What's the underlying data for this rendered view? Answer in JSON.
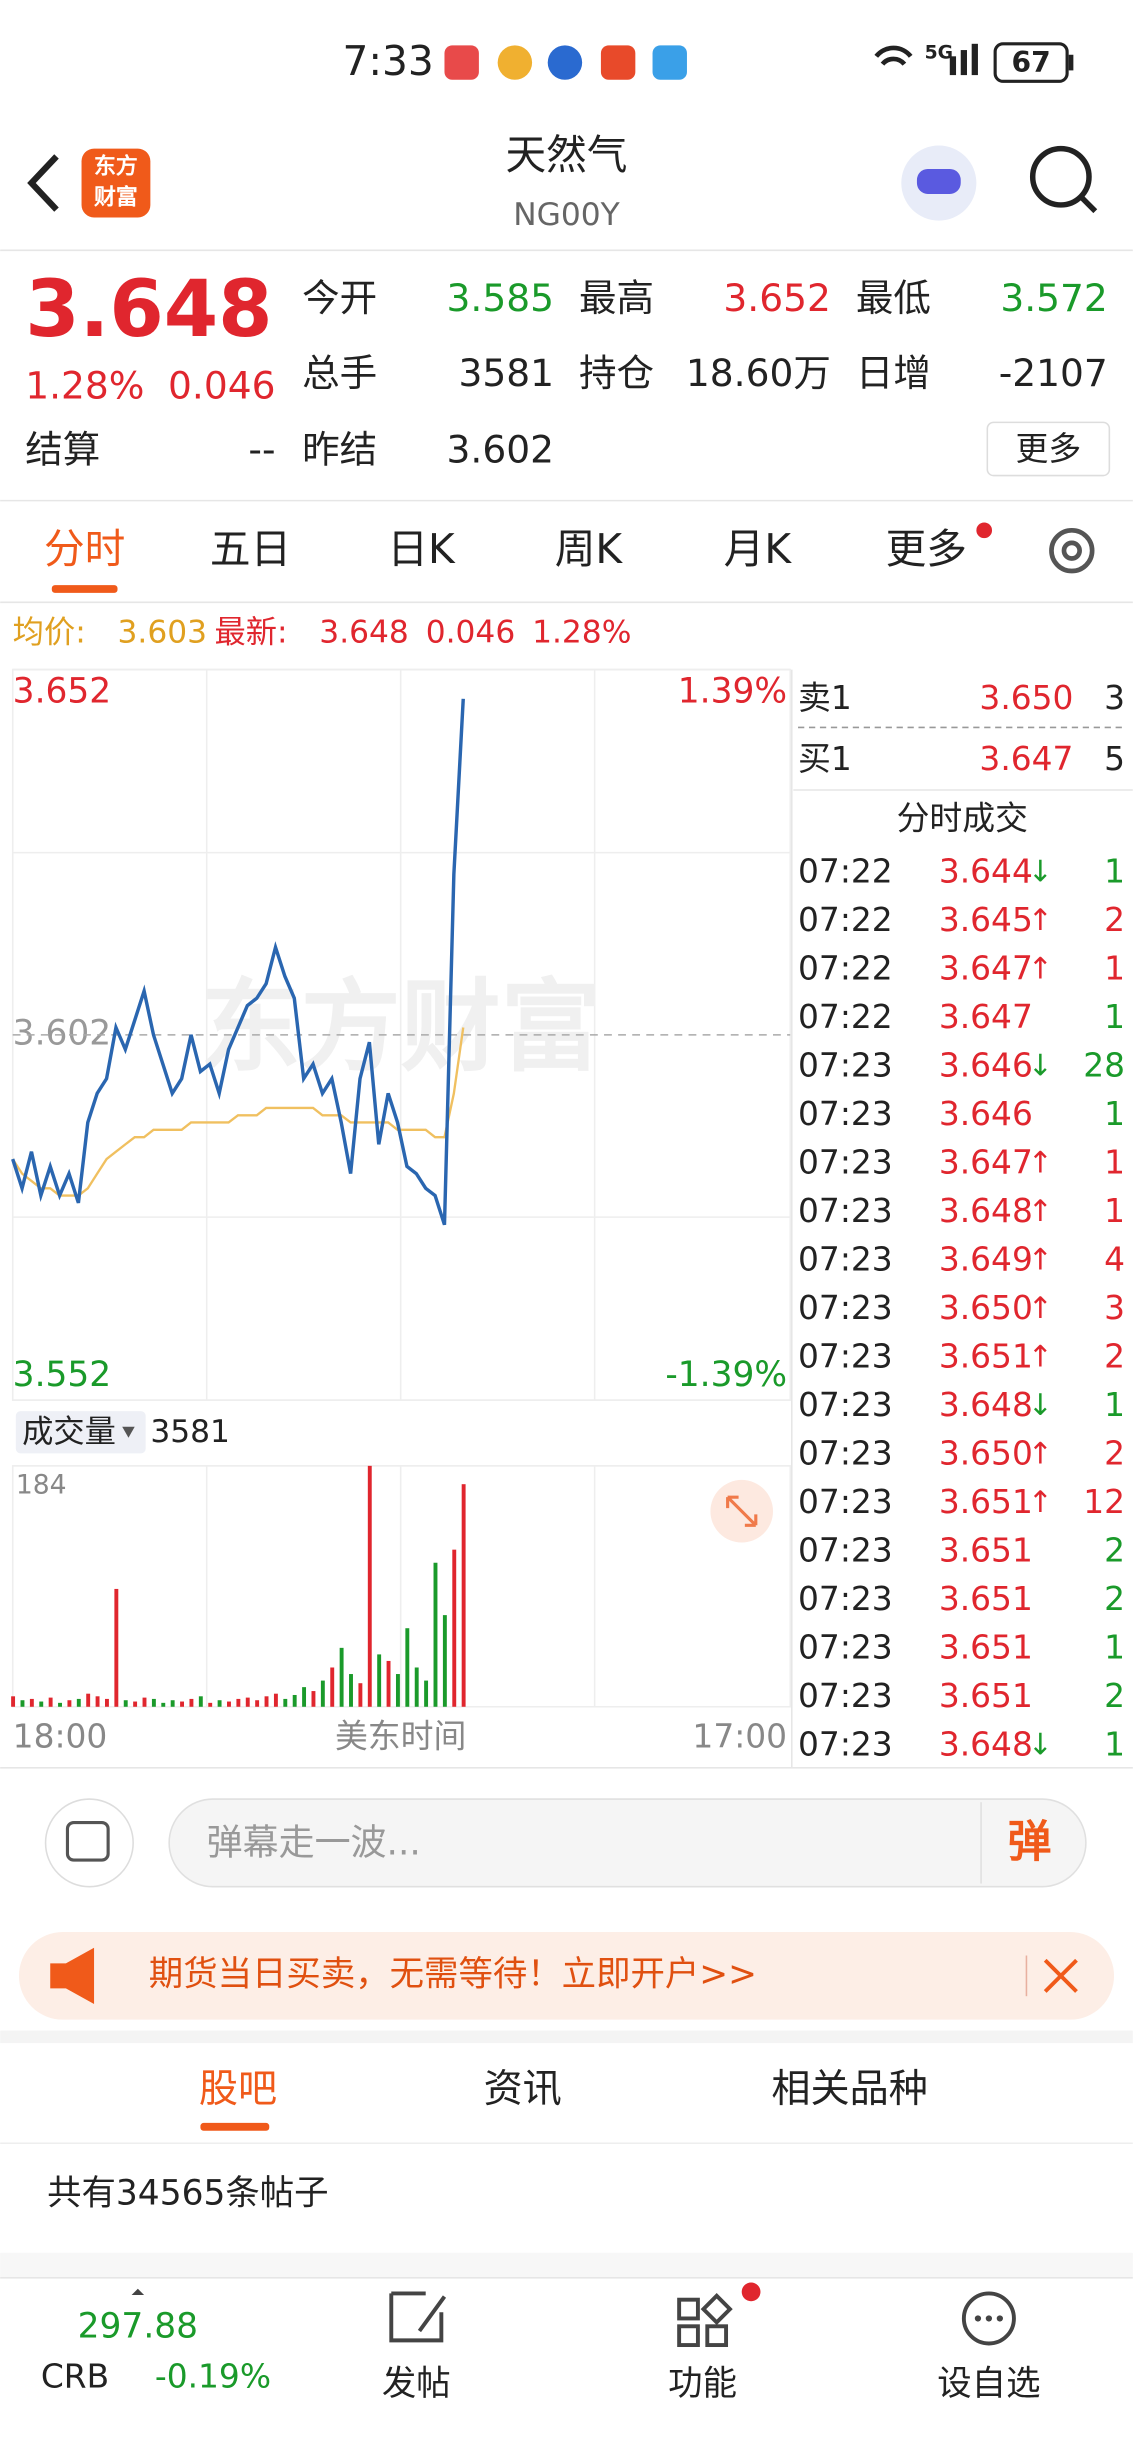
{
  "status": {
    "time": "7:33",
    "network": "5G",
    "battery": "67"
  },
  "header": {
    "logo": [
      "东方",
      "财富"
    ],
    "title": "天然气",
    "code": "NG00Y"
  },
  "quote": {
    "price": "3.648",
    "pct": "1.28%",
    "change": "0.046",
    "settle_label": "结算",
    "settle": "--",
    "fields": [
      {
        "label": "今开",
        "value": "3.585",
        "color": "#1a9a2a"
      },
      {
        "label": "最高",
        "value": "3.652",
        "color": "#e0262e"
      },
      {
        "label": "最低",
        "value": "3.572",
        "color": "#1a9a2a"
      },
      {
        "label": "总手",
        "value": "3581",
        "color": "#222222"
      },
      {
        "label": "持仓",
        "value": "18.60万",
        "color": "#222222"
      },
      {
        "label": "日增",
        "value": "-2107",
        "color": "#222222"
      },
      {
        "label": "昨结",
        "value": "3.602",
        "color": "#222222"
      }
    ],
    "more": "更多"
  },
  "tabs": [
    "分时",
    "五日",
    "日K",
    "周K",
    "月K",
    "更多"
  ],
  "info": {
    "avg_label": "均价:",
    "avg": "3.603",
    "latest_label": "最新:",
    "latest": "3.648",
    "change": "0.046",
    "pct": "1.28%"
  },
  "chart_data": [
    {
      "type": "line",
      "watermark": "东方财富",
      "ylim": [
        3.552,
        3.652
      ],
      "yticks": [
        3.552,
        3.602,
        3.652
      ],
      "y2lim": [
        -1.39,
        1.39
      ],
      "y2ticks": [
        {
          "value": -1.39,
          "label": "-1.39%"
        },
        {
          "value": 1.39,
          "label": "1.39%"
        }
      ],
      "x_labels": [
        "18:00",
        "美东时间",
        "17:00"
      ],
      "series": [
        {
          "color": "#2a66b0",
          "values": [
            3.585,
            3.581,
            3.586,
            3.58,
            3.584,
            3.58,
            3.583,
            3.579,
            3.59,
            3.594,
            3.596,
            3.603,
            3.6,
            3.604,
            3.608,
            3.602,
            3.598,
            3.594,
            3.596,
            3.602,
            3.597,
            3.598,
            3.594,
            3.6,
            3.603,
            3.606,
            3.607,
            3.609,
            3.614,
            3.61,
            3.607,
            3.596,
            3.598,
            3.594,
            3.596,
            3.59,
            3.583,
            3.596,
            3.601,
            3.587,
            3.594,
            3.59,
            3.584,
            3.583,
            3.581,
            3.58,
            3.576,
            3.624,
            3.648
          ]
        },
        {
          "color": "#f0c060",
          "values": [
            3.585,
            3.583,
            3.582,
            3.581,
            3.581,
            3.58,
            3.58,
            3.58,
            3.581,
            3.583,
            3.585,
            3.586,
            3.587,
            3.588,
            3.588,
            3.589,
            3.589,
            3.589,
            3.589,
            3.59,
            3.59,
            3.59,
            3.59,
            3.59,
            3.591,
            3.591,
            3.591,
            3.592,
            3.592,
            3.592,
            3.592,
            3.592,
            3.592,
            3.591,
            3.591,
            3.591,
            3.59,
            3.59,
            3.59,
            3.59,
            3.59,
            3.589,
            3.589,
            3.589,
            3.589,
            3.588,
            3.588,
            3.594,
            3.603
          ]
        }
      ]
    },
    {
      "type": "bar",
      "label": "成交量",
      "total": "3581",
      "ylim": [
        0,
        184
      ],
      "yticks": [
        184
      ],
      "up_color": "#e0262e",
      "down_color": "#1a9a2a",
      "values": [
        8,
        5,
        6,
        4,
        7,
        3,
        5,
        6,
        10,
        8,
        6,
        90,
        5,
        4,
        7,
        6,
        3,
        5,
        4,
        6,
        8,
        3,
        5,
        4,
        6,
        7,
        5,
        8,
        10,
        6,
        9,
        15,
        12,
        20,
        30,
        45,
        25,
        18,
        184,
        40,
        35,
        25,
        60,
        30,
        20,
        110,
        70,
        120,
        170
      ]
    }
  ],
  "orderbook": {
    "ask": {
      "label": "卖1",
      "price": "3.650",
      "vol": "3"
    },
    "bid": {
      "label": "买1",
      "price": "3.647",
      "vol": "5"
    },
    "trades_title": "分时成交",
    "trades": [
      {
        "time": "07:22",
        "price": "3.644",
        "arrow": "↓",
        "vol": "1",
        "color": "#1a9a2a"
      },
      {
        "time": "07:22",
        "price": "3.645",
        "arrow": "↑",
        "vol": "2",
        "color": "#e0262e"
      },
      {
        "time": "07:22",
        "price": "3.647",
        "arrow": "↑",
        "vol": "1",
        "color": "#e0262e"
      },
      {
        "time": "07:22",
        "price": "3.647",
        "vol": "1",
        "color": "#1a9a2a"
      },
      {
        "time": "07:23",
        "price": "3.646",
        "arrow": "↓",
        "vol": "28",
        "color": "#1a9a2a"
      },
      {
        "time": "07:23",
        "price": "3.646",
        "vol": "1",
        "color": "#1a9a2a"
      },
      {
        "time": "07:23",
        "price": "3.647",
        "arrow": "↑",
        "vol": "1",
        "color": "#e0262e"
      },
      {
        "time": "07:23",
        "price": "3.648",
        "arrow": "↑",
        "vol": "1",
        "color": "#e0262e"
      },
      {
        "time": "07:23",
        "price": "3.649",
        "arrow": "↑",
        "vol": "4",
        "color": "#e0262e"
      },
      {
        "time": "07:23",
        "price": "3.650",
        "arrow": "↑",
        "vol": "3",
        "color": "#e0262e"
      },
      {
        "time": "07:23",
        "price": "3.651",
        "arrow": "↑",
        "vol": "2",
        "color": "#e0262e"
      },
      {
        "time": "07:23",
        "price": "3.648",
        "arrow": "↓",
        "vol": "1",
        "color": "#1a9a2a"
      },
      {
        "time": "07:23",
        "price": "3.650",
        "arrow": "↑",
        "vol": "2",
        "color": "#e0262e"
      },
      {
        "time": "07:23",
        "price": "3.651",
        "arrow": "↑",
        "vol": "12",
        "color": "#e0262e"
      },
      {
        "time": "07:23",
        "price": "3.651",
        "vol": "2",
        "color": "#1a9a2a"
      },
      {
        "time": "07:23",
        "price": "3.651",
        "vol": "2",
        "color": "#1a9a2a"
      },
      {
        "time": "07:23",
        "price": "3.651",
        "vol": "1",
        "color": "#1a9a2a"
      },
      {
        "time": "07:23",
        "price": "3.651",
        "vol": "2",
        "color": "#1a9a2a"
      },
      {
        "time": "07:23",
        "price": "3.648",
        "arrow": "↓",
        "vol": "1",
        "color": "#1a9a2a"
      }
    ]
  },
  "comment": {
    "placeholder": "弹幕走一波...",
    "button": "弹"
  },
  "banner": {
    "text": "期货当日买卖，无需等待！立即开户>>"
  },
  "subtabs": [
    "股吧",
    "资讯",
    "相关品种"
  ],
  "posts": {
    "count_text": "共有34565条帖子"
  },
  "bottom": {
    "index_value": "297.88",
    "index_name": "CRB",
    "index_pct": "-0.19%",
    "nav": [
      "发帖",
      "功能",
      "设自选"
    ]
  }
}
